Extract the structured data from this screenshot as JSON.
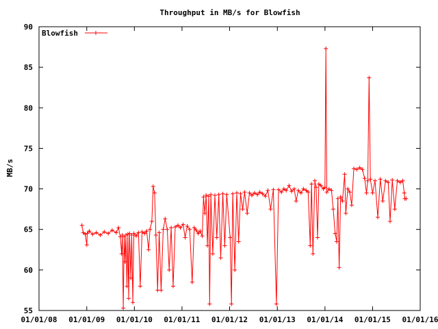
{
  "chart_data": {
    "type": "line",
    "title": "Throughput in MB/s for Blowfish",
    "xlabel": "",
    "ylabel": "MB/s",
    "xlim": [
      "2008-01-01",
      "2016-01-01"
    ],
    "ylim": [
      55,
      90
    ],
    "xticks": [
      "01/01/08",
      "01/01/09",
      "01/01/10",
      "01/01/11",
      "01/01/12",
      "01/01/13",
      "01/01/14",
      "01/01/15",
      "01/01/16"
    ],
    "yticks": [
      55,
      60,
      65,
      70,
      75,
      80,
      85,
      90
    ],
    "grid": false,
    "legend": "top-left",
    "series": [
      {
        "name": "Blowfish",
        "color": "#ff0000",
        "marker": "plus",
        "points": [
          [
            "2008-11-25",
            65.5
          ],
          [
            "2008-12-05",
            64.6
          ],
          [
            "2008-12-20",
            64.4
          ],
          [
            "2009-01-01",
            63.1
          ],
          [
            "2009-01-05",
            64.5
          ],
          [
            "2009-01-20",
            64.8
          ],
          [
            "2009-02-15",
            64.4
          ],
          [
            "2009-03-15",
            64.6
          ],
          [
            "2009-04-15",
            64.3
          ],
          [
            "2009-05-15",
            64.7
          ],
          [
            "2009-06-15",
            64.5
          ],
          [
            "2009-07-15",
            64.9
          ],
          [
            "2009-08-15",
            64.6
          ],
          [
            "2009-09-01",
            65.2
          ],
          [
            "2009-09-15",
            64.1
          ],
          [
            "2009-09-25",
            62.0
          ],
          [
            "2009-10-01",
            64.3
          ],
          [
            "2009-10-08",
            55.3
          ],
          [
            "2009-10-15",
            64.1
          ],
          [
            "2009-10-22",
            61.0
          ],
          [
            "2009-10-28",
            64.3
          ],
          [
            "2009-11-05",
            58.0
          ],
          [
            "2009-11-12",
            64.4
          ],
          [
            "2009-11-18",
            56.5
          ],
          [
            "2009-11-25",
            64.5
          ],
          [
            "2009-12-05",
            59.0
          ],
          [
            "2009-12-12",
            64.3
          ],
          [
            "2009-12-20",
            56.0
          ],
          [
            "2009-12-28",
            64.5
          ],
          [
            "2010-01-15",
            64.2
          ],
          [
            "2010-02-01",
            64.6
          ],
          [
            "2010-02-15",
            58.0
          ],
          [
            "2010-03-01",
            64.7
          ],
          [
            "2010-03-20",
            64.5
          ],
          [
            "2010-04-05",
            64.8
          ],
          [
            "2010-04-20",
            62.5
          ],
          [
            "2010-05-01",
            65.0
          ],
          [
            "2010-05-15",
            66.0
          ],
          [
            "2010-05-25",
            70.3
          ],
          [
            "2010-06-05",
            69.5
          ],
          [
            "2010-06-15",
            64.3
          ],
          [
            "2010-06-28",
            57.5
          ],
          [
            "2010-07-10",
            64.6
          ],
          [
            "2010-07-25",
            57.5
          ],
          [
            "2010-08-10",
            65.0
          ],
          [
            "2010-08-25",
            66.3
          ],
          [
            "2010-09-10",
            65.0
          ],
          [
            "2010-09-25",
            60.0
          ],
          [
            "2010-10-10",
            65.2
          ],
          [
            "2010-10-25",
            58.0
          ],
          [
            "2010-11-10",
            65.3
          ],
          [
            "2010-12-01",
            65.5
          ],
          [
            "2010-12-20",
            65.2
          ],
          [
            "2011-01-10",
            65.6
          ],
          [
            "2011-01-25",
            64.0
          ],
          [
            "2011-02-10",
            65.4
          ],
          [
            "2011-03-01",
            65.0
          ],
          [
            "2011-03-20",
            58.5
          ],
          [
            "2011-04-05",
            65.2
          ],
          [
            "2011-04-20",
            64.9
          ],
          [
            "2011-05-05",
            64.5
          ],
          [
            "2011-05-20",
            64.8
          ],
          [
            "2011-06-05",
            64.2
          ],
          [
            "2011-06-15",
            69.0
          ],
          [
            "2011-06-25",
            67.0
          ],
          [
            "2011-07-05",
            69.2
          ],
          [
            "2011-07-15",
            63.0
          ],
          [
            "2011-07-25",
            69.1
          ],
          [
            "2011-08-01",
            55.8
          ],
          [
            "2011-08-10",
            69.3
          ],
          [
            "2011-08-25",
            62.0
          ],
          [
            "2011-09-10",
            69.2
          ],
          [
            "2011-09-25",
            64.0
          ],
          [
            "2011-10-10",
            69.3
          ],
          [
            "2011-10-25",
            61.5
          ],
          [
            "2011-11-10",
            69.4
          ],
          [
            "2011-11-25",
            63.0
          ],
          [
            "2011-12-10",
            69.3
          ],
          [
            "2012-01-05",
            64.0
          ],
          [
            "2012-01-15",
            55.8
          ],
          [
            "2012-01-25",
            69.4
          ],
          [
            "2012-02-10",
            60.0
          ],
          [
            "2012-02-25",
            69.5
          ],
          [
            "2012-03-10",
            63.5
          ],
          [
            "2012-03-25",
            69.4
          ],
          [
            "2012-04-10",
            67.5
          ],
          [
            "2012-04-25",
            69.6
          ],
          [
            "2012-05-15",
            67.0
          ],
          [
            "2012-06-01",
            69.5
          ],
          [
            "2012-06-20",
            69.2
          ],
          [
            "2012-07-10",
            69.5
          ],
          [
            "2012-08-01",
            69.3
          ],
          [
            "2012-08-20",
            69.6
          ],
          [
            "2012-09-10",
            69.4
          ],
          [
            "2012-10-01",
            69.1
          ],
          [
            "2012-10-20",
            69.8
          ],
          [
            "2012-11-10",
            67.5
          ],
          [
            "2012-12-01",
            69.9
          ],
          [
            "2012-12-25",
            55.8
          ],
          [
            "2013-01-10",
            69.9
          ],
          [
            "2013-02-01",
            69.6
          ],
          [
            "2013-02-20",
            70.0
          ],
          [
            "2013-03-10",
            69.8
          ],
          [
            "2013-04-01",
            70.4
          ],
          [
            "2013-04-20",
            69.7
          ],
          [
            "2013-05-10",
            70.0
          ],
          [
            "2013-05-25",
            68.5
          ],
          [
            "2013-06-10",
            69.8
          ],
          [
            "2013-07-01",
            69.5
          ],
          [
            "2013-07-20",
            70.0
          ],
          [
            "2013-08-10",
            69.8
          ],
          [
            "2013-08-25",
            69.6
          ],
          [
            "2013-09-10",
            63.0
          ],
          [
            "2013-09-20",
            70.6
          ],
          [
            "2013-10-01",
            62.0
          ],
          [
            "2013-10-15",
            71.0
          ],
          [
            "2013-10-25",
            70.2
          ],
          [
            "2013-11-05",
            64.0
          ],
          [
            "2013-11-15",
            70.6
          ],
          [
            "2013-12-01",
            70.4
          ],
          [
            "2013-12-20",
            70.0
          ],
          [
            "2014-01-01",
            70.2
          ],
          [
            "2014-01-08",
            87.3
          ],
          [
            "2014-01-15",
            69.6
          ],
          [
            "2014-02-01",
            70.0
          ],
          [
            "2014-02-20",
            69.8
          ],
          [
            "2014-03-05",
            67.5
          ],
          [
            "2014-03-20",
            64.5
          ],
          [
            "2014-04-01",
            63.5
          ],
          [
            "2014-04-10",
            68.8
          ],
          [
            "2014-04-20",
            60.3
          ],
          [
            "2014-05-01",
            69.0
          ],
          [
            "2014-05-15",
            68.5
          ],
          [
            "2014-06-01",
            71.8
          ],
          [
            "2014-06-10",
            67.0
          ],
          [
            "2014-06-25",
            70.0
          ],
          [
            "2014-07-10",
            69.6
          ],
          [
            "2014-07-25",
            68.0
          ],
          [
            "2014-08-10",
            72.5
          ],
          [
            "2014-09-01",
            72.4
          ],
          [
            "2014-09-25",
            72.6
          ],
          [
            "2014-10-15",
            72.4
          ],
          [
            "2014-11-01",
            71.3
          ],
          [
            "2014-11-15",
            69.5
          ],
          [
            "2014-11-25",
            71.0
          ],
          [
            "2014-12-05",
            83.7
          ],
          [
            "2014-12-15",
            71.2
          ],
          [
            "2015-01-01",
            69.5
          ],
          [
            "2015-01-20",
            71.0
          ],
          [
            "2015-02-10",
            66.5
          ],
          [
            "2015-03-01",
            71.2
          ],
          [
            "2015-03-20",
            68.5
          ],
          [
            "2015-04-10",
            71.0
          ],
          [
            "2015-05-01",
            70.8
          ],
          [
            "2015-05-15",
            66.0
          ],
          [
            "2015-06-01",
            71.1
          ],
          [
            "2015-06-20",
            67.5
          ],
          [
            "2015-07-10",
            71.0
          ],
          [
            "2015-08-01",
            70.8
          ],
          [
            "2015-08-20",
            71.0
          ],
          [
            "2015-09-01",
            69.5
          ],
          [
            "2015-09-05",
            68.8
          ],
          [
            "2015-09-15",
            68.8
          ]
        ]
      }
    ]
  }
}
